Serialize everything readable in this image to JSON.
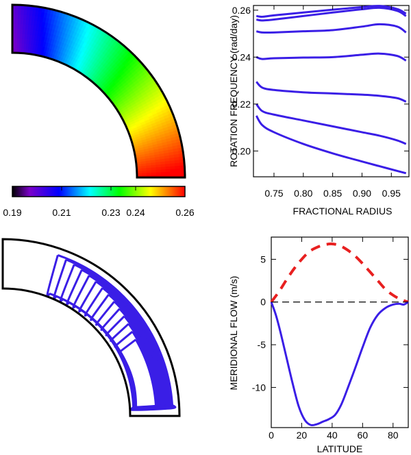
{
  "chart_data": [
    {
      "type": "heatmap",
      "panel": "rotation-map",
      "colorbar": {
        "tick_labels": [
          "0.19",
          "0.21",
          "0.23",
          "0.24",
          "0.26"
        ],
        "tick_values": [
          0.19,
          0.21,
          0.23,
          0.24,
          0.26
        ],
        "range": [
          0.19,
          0.26
        ],
        "colors": [
          "#000000",
          "#7a00c8",
          "#0000ff",
          "#00ffff",
          "#00ff00",
          "#ffff00",
          "#ff0000"
        ]
      },
      "quarter_ring": {
        "inner_radius": 0.72,
        "outer_radius": 0.98
      }
    },
    {
      "type": "line",
      "panel": "rotation-profiles",
      "xlabel": "FRACTIONAL RADIUS",
      "ylabel": "ROTATION FREQUENCY (rad/day)",
      "xlim": [
        0.715,
        0.98
      ],
      "ylim": [
        0.189,
        0.262
      ],
      "xticks": [
        0.75,
        0.8,
        0.85,
        0.9,
        0.95
      ],
      "xtick_labels": [
        "0.75",
        "0.80",
        "0.85",
        "0.90",
        "0.95"
      ],
      "yticks": [
        0.2,
        0.22,
        0.24,
        0.26
      ],
      "ytick_labels": [
        "0.20",
        "0.22",
        "0.24",
        "0.26"
      ],
      "line_color": "#3a1ee6",
      "series": [
        {
          "x": [
            0.72,
            0.73,
            0.75,
            0.8,
            0.85,
            0.9,
            0.93,
            0.96,
            0.975
          ],
          "y": [
            0.2575,
            0.2572,
            0.2578,
            0.259,
            0.2602,
            0.2613,
            0.2618,
            0.2605,
            0.2585
          ]
        },
        {
          "x": [
            0.72,
            0.73,
            0.75,
            0.8,
            0.85,
            0.9,
            0.93,
            0.96,
            0.975
          ],
          "y": [
            0.256,
            0.2556,
            0.256,
            0.2575,
            0.259,
            0.2604,
            0.261,
            0.2597,
            0.2575
          ]
        },
        {
          "x": [
            0.72,
            0.73,
            0.75,
            0.8,
            0.85,
            0.9,
            0.93,
            0.96,
            0.975
          ],
          "y": [
            0.251,
            0.2505,
            0.2505,
            0.251,
            0.2515,
            0.253,
            0.254,
            0.253,
            0.2505
          ]
        },
        {
          "x": [
            0.72,
            0.73,
            0.75,
            0.8,
            0.85,
            0.9,
            0.93,
            0.96,
            0.975
          ],
          "y": [
            0.24,
            0.2392,
            0.2395,
            0.2398,
            0.24,
            0.241,
            0.2415,
            0.2405,
            0.2385
          ]
        },
        {
          "x": [
            0.72,
            0.73,
            0.75,
            0.8,
            0.85,
            0.9,
            0.93,
            0.96,
            0.975
          ],
          "y": [
            0.2295,
            0.227,
            0.226,
            0.225,
            0.2245,
            0.224,
            0.2235,
            0.2225,
            0.221
          ]
        },
        {
          "x": [
            0.72,
            0.73,
            0.75,
            0.8,
            0.85,
            0.9,
            0.93,
            0.96,
            0.975
          ],
          "y": [
            0.22,
            0.217,
            0.2155,
            0.213,
            0.2105,
            0.208,
            0.2065,
            0.2045,
            0.203
          ]
        },
        {
          "x": [
            0.72,
            0.73,
            0.75,
            0.8,
            0.85,
            0.9,
            0.93,
            0.96,
            0.975
          ],
          "y": [
            0.215,
            0.211,
            0.208,
            0.203,
            0.199,
            0.1955,
            0.1935,
            0.1915,
            0.1905
          ]
        }
      ]
    },
    {
      "type": "contour",
      "panel": "meridional-streamlines",
      "line_color": "#3a1ee6",
      "contour_count": 14,
      "quarter_ring": {
        "inner_radius": 0.72,
        "outer_radius": 0.98
      }
    },
    {
      "type": "line",
      "panel": "meridional-flow",
      "xlabel": "LATITUDE",
      "ylabel": "MERIDIONAL FLOW (m/s)",
      "xlim": [
        0,
        90
      ],
      "ylim": [
        -14.7,
        7.6
      ],
      "xticks": [
        0,
        20,
        40,
        60,
        80
      ],
      "xtick_labels": [
        "0",
        "20",
        "40",
        "60",
        "80"
      ],
      "yticks": [
        5,
        0,
        -5,
        -10
      ],
      "ytick_labels": [
        "5",
        "0",
        "-5",
        "-10"
      ],
      "zero_line": true,
      "series": [
        {
          "style": "dashed",
          "color": "#e82020",
          "x": [
            0,
            5,
            10,
            15,
            20,
            25,
            30,
            35,
            40,
            45,
            50,
            55,
            60,
            65,
            70,
            75,
            80,
            85,
            90
          ],
          "y": [
            0,
            1.2,
            2.6,
            3.9,
            5.0,
            5.9,
            6.4,
            6.7,
            6.8,
            6.6,
            6.1,
            5.4,
            4.5,
            3.5,
            2.5,
            1.5,
            0.8,
            0.3,
            0
          ]
        },
        {
          "style": "solid",
          "color": "#3a1ee6",
          "x": [
            0,
            3,
            6,
            10,
            14,
            18,
            22,
            26,
            30,
            34,
            38,
            42,
            46,
            50,
            55,
            60,
            65,
            70,
            75,
            80,
            84,
            87,
            90
          ],
          "y": [
            0,
            -1.5,
            -3.5,
            -6.5,
            -9.5,
            -12.2,
            -13.8,
            -14.4,
            -14.3,
            -14.0,
            -13.7,
            -13.2,
            -12.0,
            -10.2,
            -7.8,
            -5.3,
            -3.0,
            -1.5,
            -0.7,
            -0.3,
            -0.2,
            -0.3,
            0
          ]
        }
      ]
    }
  ]
}
